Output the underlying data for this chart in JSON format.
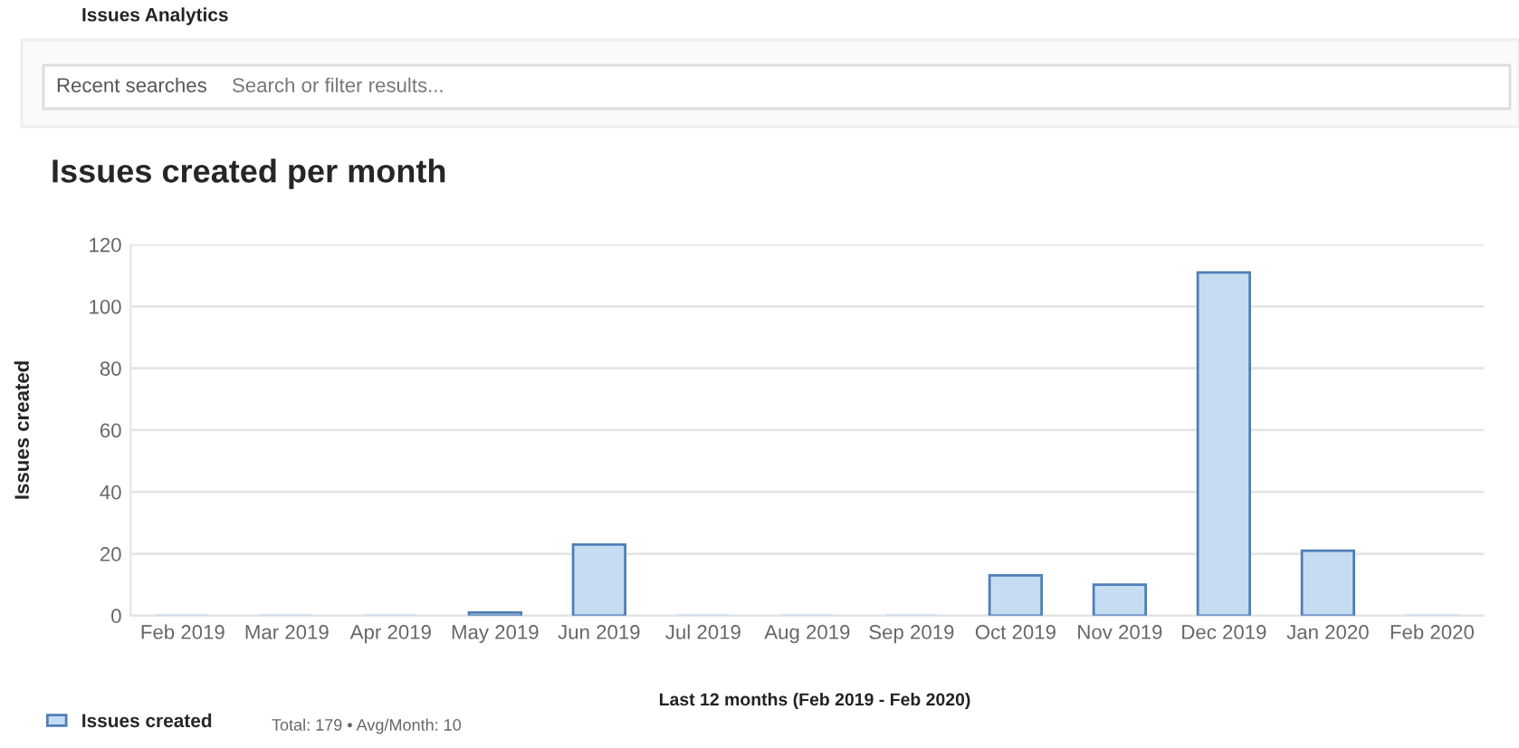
{
  "chart_data": {
    "type": "bar",
    "title": "Issues created per month",
    "ylabel": "Issues created",
    "categories": [
      "Feb 2019",
      "Mar 2019",
      "Apr 2019",
      "May 2019",
      "Jun 2019",
      "Jul 2019",
      "Aug 2019",
      "Sep 2019",
      "Oct 2019",
      "Nov 2019",
      "Dec 2019",
      "Jan 2020",
      "Feb 2020"
    ],
    "series": [
      {
        "name": "Issues created",
        "color": "#c6dcf3",
        "values": [
          0,
          0,
          0,
          1,
          23,
          0,
          0,
          0,
          13,
          10,
          111,
          21,
          0
        ]
      }
    ],
    "ylim": [
      0,
      120
    ],
    "yticks": [
      0,
      20,
      40,
      60,
      80,
      100,
      120
    ],
    "grid": "y",
    "legend": "bottom left",
    "annotations": [
      "Issues Analytics",
      "Recent searches",
      "Search or filter results...",
      "Last 12 months (Feb 2019 - Feb 2020)",
      "Total: 179 • Avg/Month: 10"
    ]
  }
}
